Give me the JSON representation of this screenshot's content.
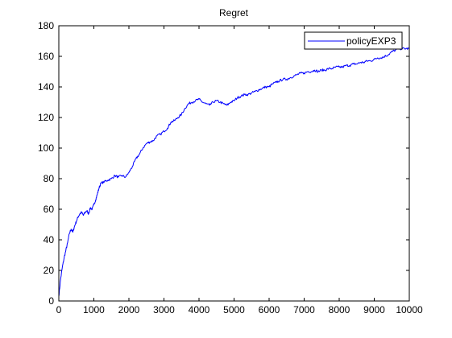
{
  "chart_data": {
    "type": "line",
    "title": "Regret",
    "xlabel": "",
    "ylabel": "",
    "xlim": [
      0,
      10000
    ],
    "ylim": [
      0,
      180
    ],
    "x_ticks": [
      0,
      1000,
      2000,
      3000,
      4000,
      5000,
      6000,
      7000,
      8000,
      9000,
      10000
    ],
    "y_ticks": [
      0,
      20,
      40,
      60,
      80,
      100,
      120,
      140,
      160,
      180
    ],
    "grid": false,
    "legend_position": "top-right",
    "series": [
      {
        "name": "policyEXP3",
        "color": "#0000ff",
        "x": [
          0,
          50,
          100,
          150,
          200,
          250,
          300,
          350,
          400,
          450,
          500,
          550,
          600,
          650,
          700,
          750,
          800,
          850,
          900,
          950,
          1000,
          1050,
          1100,
          1150,
          1200,
          1300,
          1400,
          1500,
          1600,
          1700,
          1800,
          1900,
          2000,
          2100,
          2200,
          2300,
          2400,
          2500,
          2600,
          2700,
          2800,
          2900,
          3000,
          3100,
          3200,
          3300,
          3400,
          3500,
          3600,
          3700,
          3800,
          3900,
          4000,
          4100,
          4200,
          4300,
          4400,
          4500,
          4600,
          4700,
          4800,
          4900,
          5000,
          5100,
          5200,
          5300,
          5400,
          5500,
          5600,
          5700,
          5800,
          5900,
          6000,
          6100,
          6200,
          6300,
          6400,
          6500,
          6600,
          6700,
          6800,
          6900,
          7000,
          7100,
          7200,
          7300,
          7400,
          7500,
          7600,
          7700,
          7800,
          7900,
          8000,
          8100,
          8200,
          8300,
          8400,
          8500,
          8600,
          8700,
          8800,
          8900,
          9000,
          9100,
          9200,
          9300,
          9400,
          9500,
          9600,
          9700,
          9800,
          9900,
          10000
        ],
        "y": [
          3,
          14,
          22,
          28,
          33,
          38,
          44,
          47,
          45,
          49,
          52,
          55,
          57,
          58,
          56,
          58,
          59,
          57,
          61,
          60,
          63,
          66,
          70,
          74,
          77,
          78,
          79,
          80,
          82,
          81,
          82,
          81,
          84,
          88,
          93,
          96,
          100,
          103,
          104,
          105,
          108,
          109,
          111,
          113,
          117,
          118,
          120,
          122,
          126,
          129,
          130,
          131,
          132,
          130,
          129,
          128,
          130,
          131,
          130,
          129,
          128,
          130,
          131,
          133,
          134,
          135,
          135,
          136,
          137,
          138,
          139,
          140,
          140,
          142,
          143,
          144,
          145,
          145,
          146,
          147,
          148,
          149,
          149,
          150,
          150,
          151,
          150,
          151,
          151,
          152,
          152,
          153,
          153,
          153,
          154,
          154,
          155,
          155,
          156,
          156,
          157,
          157,
          158,
          159,
          159,
          160,
          161,
          163,
          164,
          165,
          165,
          165,
          165
        ]
      }
    ]
  }
}
